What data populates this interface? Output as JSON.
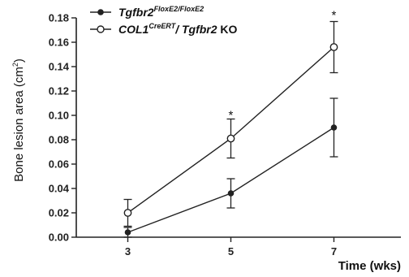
{
  "chart_data": {
    "type": "line",
    "xlabel": "Time (wks)",
    "ylabel": "Bone lesion area (cm",
    "ylabel_sup": "2",
    "ylabel_close": ")",
    "x": [
      3,
      5,
      7
    ],
    "x_tick_labels": [
      "3",
      "5",
      "7"
    ],
    "xlim": [
      2,
      8.3
    ],
    "ylim": [
      0,
      0.18
    ],
    "y_ticks": [
      0,
      0.02,
      0.04,
      0.06,
      0.08,
      0.1,
      0.12,
      0.14,
      0.16,
      0.18
    ],
    "y_tick_labels": [
      "0.00",
      "0.02",
      "0.04",
      "0.06",
      "0.08",
      "0.10",
      "0.12",
      "0.14",
      "0.16",
      "0.18"
    ],
    "series": [
      {
        "name": "Tgfbr2FloxE2/FloxE2",
        "legend_main": "Tgfbr2",
        "legend_sup": "FloxE2/FloxE2",
        "marker": "filled",
        "values": [
          0.004,
          0.036,
          0.09
        ],
        "errors": [
          0.004,
          0.012,
          0.024
        ]
      },
      {
        "name": "COL1CreERT/ Tgfbr2 KO",
        "legend_main": "COL1",
        "legend_sup": "CreERT",
        "legend_rest": "/ Tgfbr2",
        "legend_tail": " KO",
        "marker": "open",
        "values": [
          0.02,
          0.081,
          0.156
        ],
        "errors": [
          0.011,
          0.016,
          0.021
        ]
      }
    ],
    "annotations": [
      {
        "text": "*",
        "x": 5,
        "y": 0.101
      },
      {
        "text": "*",
        "x": 7,
        "y": 0.183
      }
    ],
    "legend_position": "top-left"
  }
}
